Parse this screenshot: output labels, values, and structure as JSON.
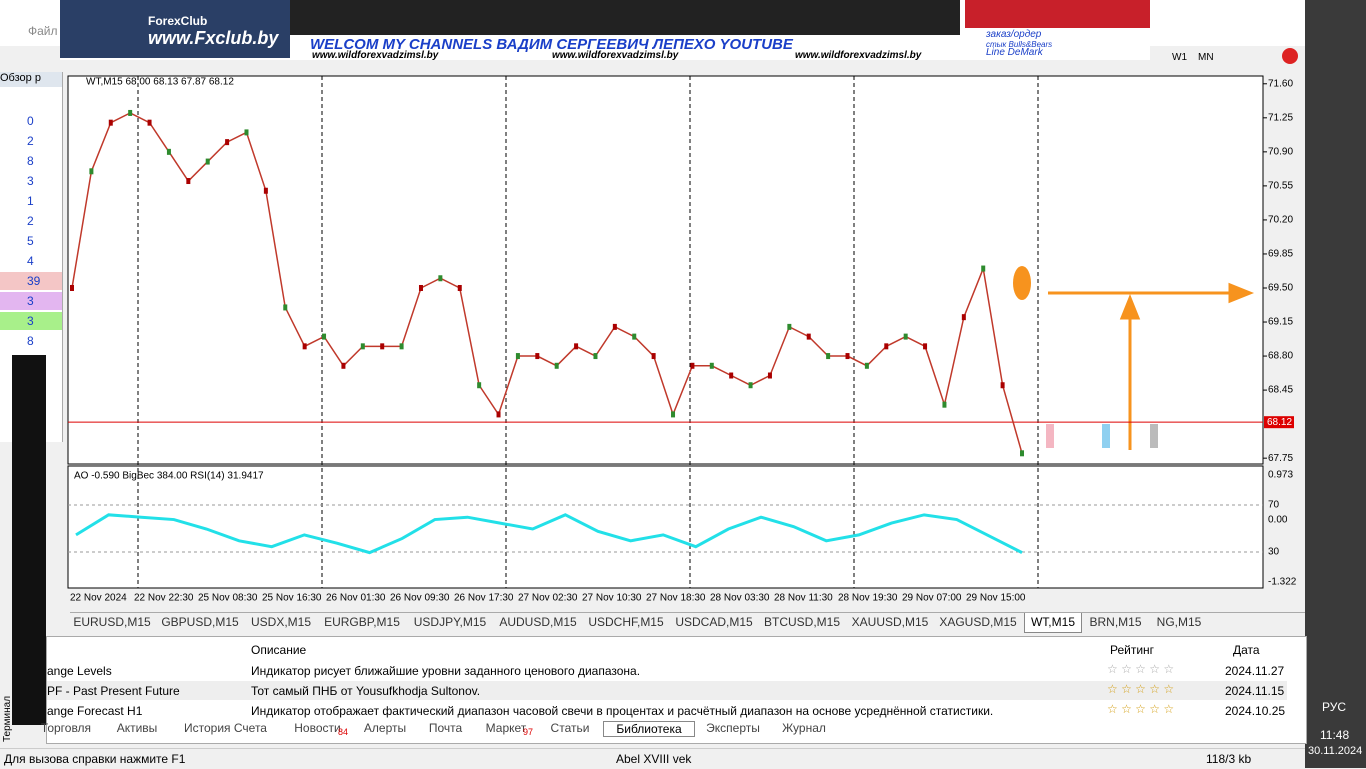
{
  "banner": {
    "logo": "ForexClub",
    "site": "www.Fxclub.by",
    "headline": "WELCOM MY CHANNELS ВАДИМ СЕРГЕЕВИЧ ЛЕПЕХО YOUTUBE",
    "links": [
      "www.wildforexvadzimsl.by",
      "www.wildforexvadzimsl.by",
      "www.wildforexvadzimsl.by"
    ],
    "order": "заказ/ордер",
    "bulls": "стык Bulls&Bears",
    "demark": "Line DeMark"
  },
  "menu": {
    "file": "Файл"
  },
  "toolbar": {
    "timeframes": [
      "W1",
      "MN"
    ]
  },
  "market_watch": {
    "title": "Обзор р",
    "values": [
      "0",
      "2",
      "8",
      "3",
      "1",
      "2",
      "5",
      "4",
      "39",
      "3",
      "3",
      "8"
    ]
  },
  "chart": {
    "type": "line",
    "header": "WT,M15 68.00 68.13 67.87 68.12",
    "indicator_header": "AO -0.590 BigBec 384.00 RSI(14) 31.9417",
    "ylim": [
      67.69,
      71.68
    ],
    "yticks": [
      {
        "value": 71.6,
        "label": "71.60"
      },
      71.25,
      {
        "value": 70.9,
        "label": "70.90"
      },
      70.55,
      {
        "value": 70.2,
        "label": "70.20"
      },
      69.85,
      {
        "value": 69.5,
        "label": "69.50"
      },
      69.15,
      {
        "value": 68.8,
        "label": "68.80"
      },
      68.45,
      67.75
    ],
    "last_price": 68.12,
    "x_labels": [
      "22 Nov 2024",
      "22 Nov 22:30",
      "25 Nov 08:30",
      "25 Nov 16:30",
      "26 Nov 01:30",
      "26 Nov 09:30",
      "26 Nov 17:30",
      "27 Nov 02:30",
      "27 Nov 10:30",
      "27 Nov 18:30",
      "28 Nov 03:30",
      "28 Nov 11:30",
      "28 Nov 19:30",
      "29 Nov 07:00",
      "29 Nov 15:00"
    ],
    "values": [
      69.5,
      70.7,
      71.2,
      71.3,
      71.2,
      70.9,
      70.6,
      70.8,
      71.0,
      71.1,
      70.5,
      69.3,
      68.9,
      69.0,
      68.7,
      68.9,
      68.9,
      68.9,
      69.5,
      69.6,
      69.5,
      68.5,
      68.2,
      68.8,
      68.8,
      68.7,
      68.9,
      68.8,
      69.1,
      69.0,
      68.8,
      68.2,
      68.7,
      68.7,
      68.6,
      68.5,
      68.6,
      69.1,
      69.0,
      68.8,
      68.8,
      68.7,
      68.9,
      69.0,
      68.9,
      68.3,
      69.2,
      69.7,
      68.5,
      67.8
    ],
    "rsi_ylim": [
      0,
      100
    ],
    "rsi": [
      45,
      62,
      60,
      58,
      50,
      40,
      35,
      45,
      38,
      30,
      42,
      58,
      60,
      55,
      50,
      62,
      48,
      40,
      45,
      35,
      50,
      60,
      52,
      40,
      45,
      55,
      62,
      58,
      44,
      30
    ],
    "sub_labels": [
      "0.973",
      "70",
      "0.00",
      "30",
      "-1.322"
    ]
  },
  "symbol_tabs": [
    "EURUSD,M15",
    "GBPUSD,M15",
    "USDX,M15",
    "EURGBP,M15",
    "USDJPY,M15",
    "AUDUSD,M15",
    "USDCHF,M15",
    "USDCAD,M15",
    "BTCUSD,M15",
    "XAUUSD,M15",
    "XAGUSD,M15",
    "WT,M15",
    "BRN,M15",
    "NG,M15"
  ],
  "terminal": {
    "headers": [
      "Описание",
      "Рейтинг",
      "Дата"
    ],
    "rows": [
      [
        "ange Levels",
        "Индикатор рисует ближайшие уровни заданного ценового диапазона.",
        "2024.11.27"
      ],
      [
        "PF - Past Present Future",
        "Тот самый ПНБ от Yousufkhodja Sultonov.",
        "2024.11.15"
      ],
      [
        "ange Forecast H1",
        "Индикатор отображает фактический диапазон часовой свечи в процентах и расчётный диапазон на основе усреднённой статистики.",
        "2024.10.25"
      ]
    ],
    "tabs": [
      "Торговля",
      "Активы",
      "История Счета",
      "Новости",
      "Алерты",
      "Почта",
      "Маркет",
      "Статьи",
      "Библиотека",
      "Эксперты",
      "Журнал"
    ],
    "badges": {
      "news": "84",
      "market": "97"
    },
    "side": "Терминал"
  },
  "status": {
    "help": "Для вызова справки нажмите F1",
    "profile": "Abel XVIII vek",
    "traffic": "118/3 kb"
  },
  "taskbar": {
    "lang": "РУС",
    "time": "11:48",
    "date": "30.11.2024"
  }
}
